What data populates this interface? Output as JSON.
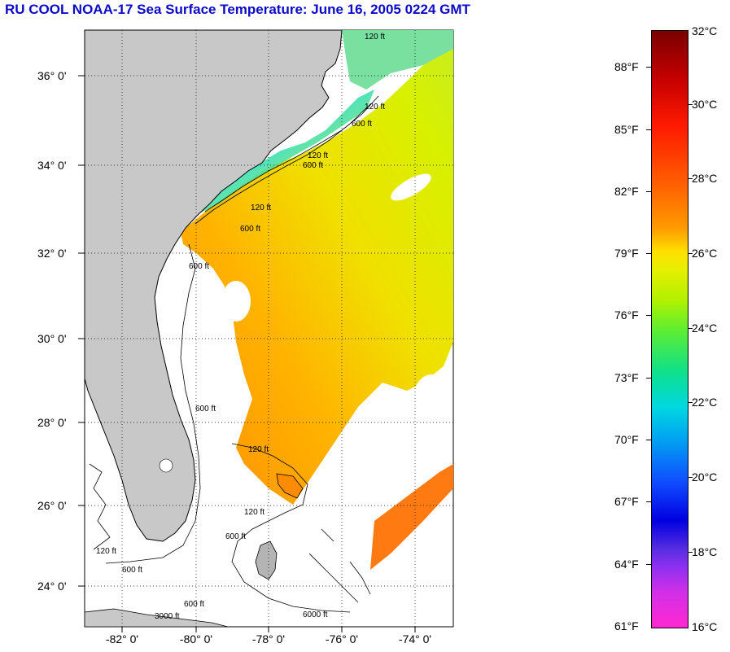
{
  "title": "RU COOL  NOAA-17  Sea Surface Temperature:  June 16, 2005 0224 GMT",
  "map": {
    "lat_labels": [
      "36° 0'",
      "34° 0'",
      "32° 0'",
      "30° 0'",
      "28° 0'",
      "26° 0'",
      "24° 0'"
    ],
    "lon_labels": [
      "-82° 0'",
      "-80° 0'",
      "-78° 0'",
      "-76° 0'",
      "-74° 0'"
    ],
    "contour_labels": [
      "120 ft",
      "120 ft",
      "600 ft",
      "120 ft",
      "600 ft",
      "120 ft",
      "600 ft",
      "600 ft",
      "120 ft",
      "120 ft",
      "600 ft",
      "600 ft",
      "600 ft",
      "3000 ft",
      "6000 ft",
      "600 ft",
      "120 ft"
    ],
    "colors": {
      "land": "#c8c8c8",
      "cloud": "#ffffff",
      "grid": "#000000"
    }
  },
  "colorbar": {
    "f_labels": [
      "88°F",
      "85°F",
      "82°F",
      "79°F",
      "76°F",
      "73°F",
      "70°F",
      "67°F",
      "64°F",
      "61°F"
    ],
    "c_labels": [
      "32°C",
      "30°C",
      "28°C",
      "26°C",
      "24°C",
      "22°C",
      "20°C",
      "18°C",
      "16°C"
    ]
  }
}
